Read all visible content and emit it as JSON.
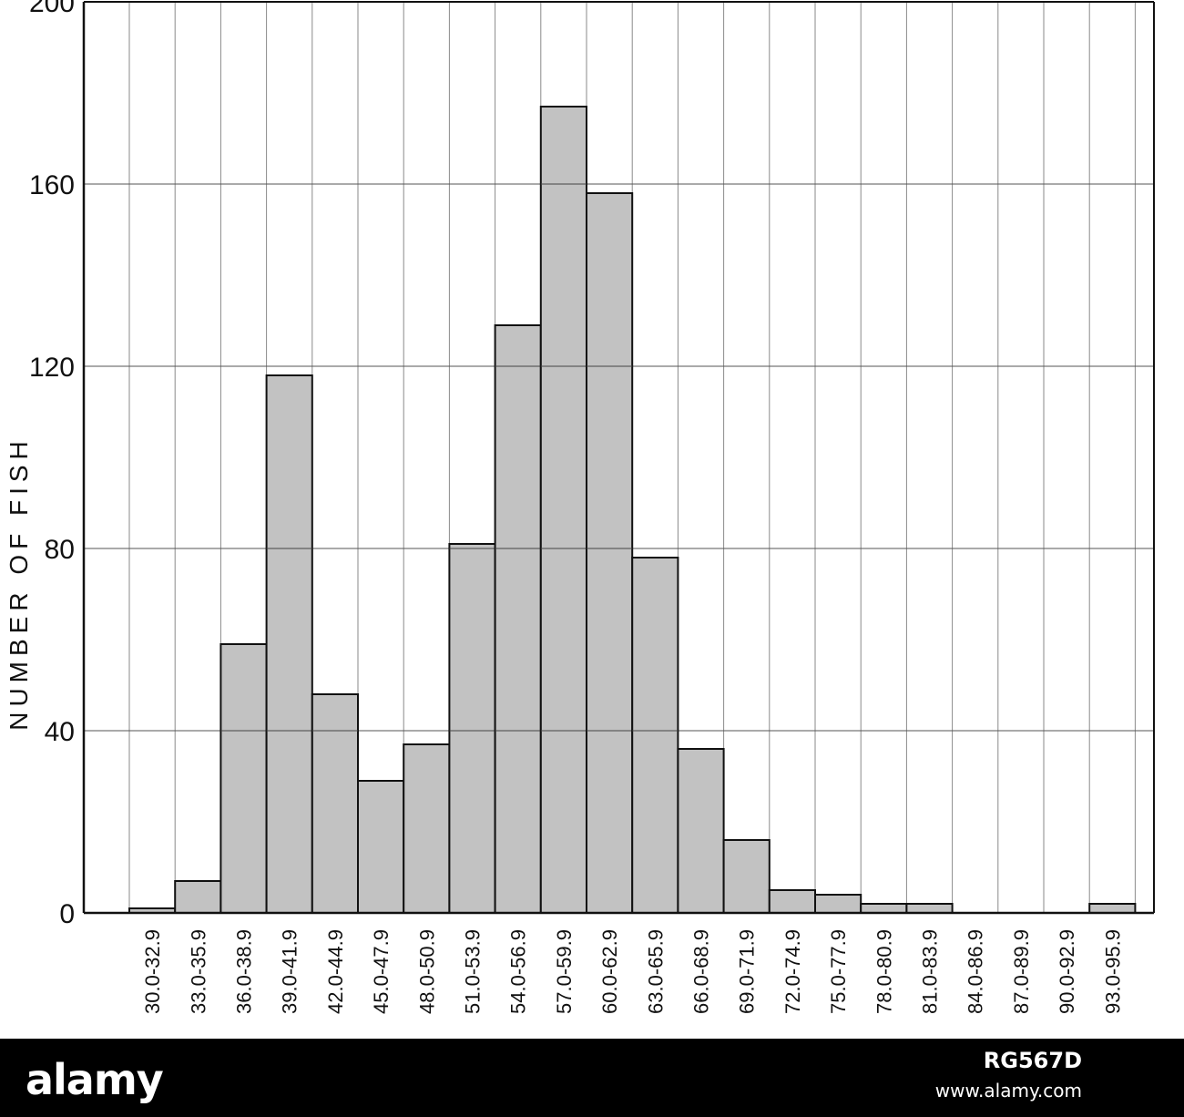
{
  "chart_data": {
    "type": "bar",
    "ylabel": "NUMBER OF FISH",
    "xlabel": "",
    "ylim": [
      0,
      200
    ],
    "yticks": [
      "0",
      "40",
      "80",
      "120",
      "160",
      "200"
    ],
    "grid": true,
    "categories": [
      "30.0-32.9",
      "33.0-35.9",
      "36.0-38.9",
      "39.0-41.9",
      "42.0-44.9",
      "45.0-47.9",
      "48.0-50.9",
      "51.0-53.9",
      "54.0-56.9",
      "57.0-59.9",
      "60.0-62.9",
      "63.0-65.9",
      "66.0-68.9",
      "69.0-71.9",
      "72.0-74.9",
      "75.0-77.9",
      "78.0-80.9",
      "81.0-83.9",
      "84.0-86.9",
      "87.0-89.9",
      "90.0-92.9",
      "93.0-95.9"
    ],
    "values": [
      1,
      7,
      59,
      118,
      48,
      29,
      37,
      81,
      129,
      177,
      158,
      78,
      36,
      16,
      5,
      4,
      2,
      2,
      0,
      0,
      0,
      2
    ],
    "bar_color": "#c2c2c2",
    "outline_color": "#111111"
  },
  "watermark": {
    "logo": "alamy",
    "image_id": "RG567D",
    "url": "www.alamy.com"
  }
}
